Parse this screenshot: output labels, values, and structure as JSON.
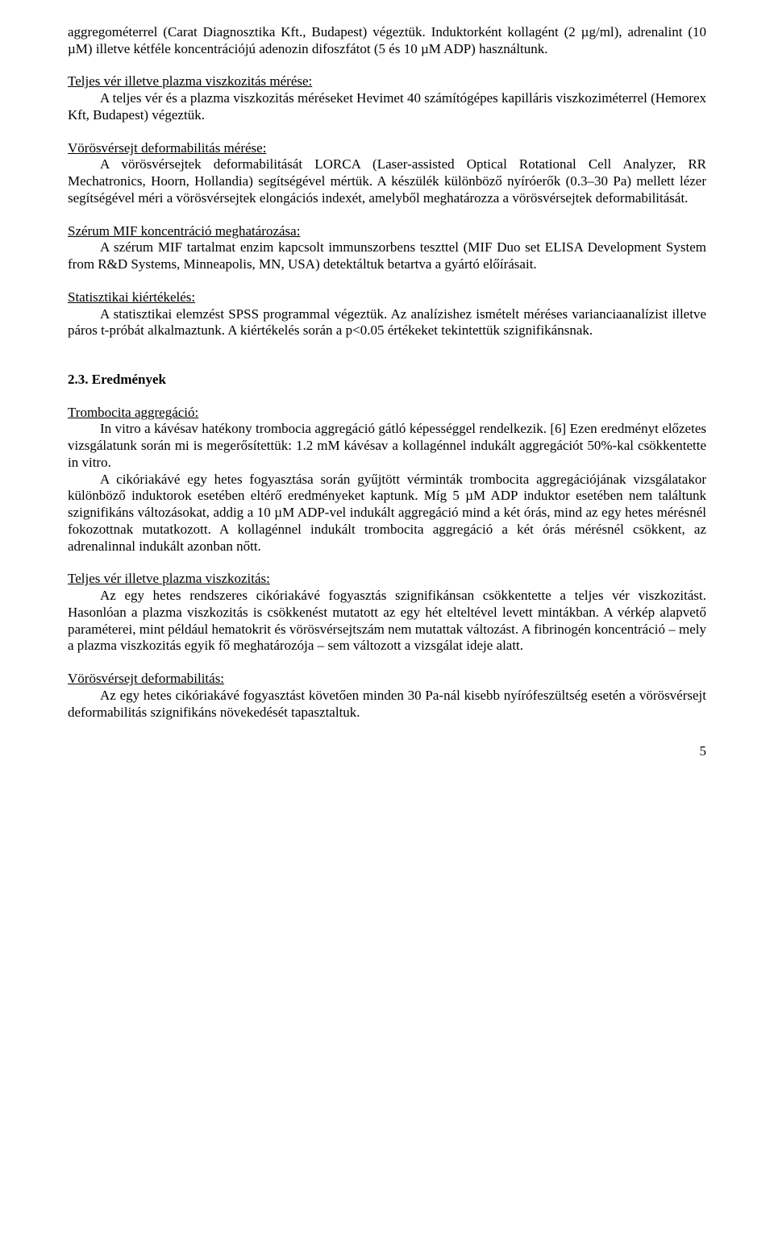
{
  "p1": "aggregométerrel (Carat Diagnosztika Kft., Budapest) végeztük. Induktorként kollagént (2 µg/ml), adrenalint (10 µM) illetve kétféle koncentrációjú adenozin difoszfátot (5 és 10 µM ADP) használtunk.",
  "p2_head": "Teljes vér illetve plazma viszkozitás mérése:",
  "p2_body": "A teljes vér és a plazma viszkozitás méréseket Hevimet 40 számítógépes kapilláris viszkoziméterrel (Hemorex Kft, Budapest) végeztük.",
  "p3_head": "Vörösvérsejt deformabilitás mérése:",
  "p3_body": "A vörösvérsejtek deformabilitását LORCA (Laser-assisted Optical Rotational Cell Analyzer, RR Mechatronics, Hoorn, Hollandia) segítségével mértük. A készülék különböző nyíróerők (0.3–30 Pa) mellett lézer segítségével méri a vörösvérsejtek elongációs indexét, amelyből meghatározza a vörösvérsejtek deformabilitását.",
  "p4_head": "Szérum MIF koncentráció meghatározása:",
  "p4_body": "A szérum MIF tartalmat enzim kapcsolt immunszorbens teszttel (MIF Duo set ELISA Development System from R&D Systems, Minneapolis, MN, USA) detektáltuk betartva a gyártó előírásait.",
  "p5_head": "Statisztikai kiértékelés:",
  "p5_body": "A statisztikai elemzést SPSS programmal végeztük. Az analízishez ismételt méréses varianciaanalízist illetve páros t-próbát alkalmaztunk. A kiértékelés során a p<0.05 értékeket tekintettük szignifikánsnak.",
  "section_heading": "2.3. Eredmények",
  "p6_head": "Trombocita aggregáció:",
  "p6_body1": "In vitro a kávésav hatékony trombocia aggregáció gátló képességgel rendelkezik. [6] Ezen eredményt előzetes vizsgálatunk során mi is megerősítettük: 1.2 mM kávésav a kollagénnel indukált aggregációt 50%-kal csökkentette in vitro.",
  "p6_body2": "A cikóriakávé egy hetes fogyasztása során gyűjtött vérminták trombocita aggregációjának vizsgálatakor különböző induktorok esetében eltérő eredményeket kaptunk. Míg 5 µM ADP induktor esetében nem találtunk szignifikáns változásokat, addig a 10 µM ADP-vel indukált aggregáció mind a két órás, mind az egy hetes mérésnél fokozottnak mutatkozott. A kollagénnel indukált trombocita aggregáció a két órás mérésnél csökkent, az adrenalinnal indukált azonban nőtt.",
  "p7_head": "Teljes vér illetve plazma viszkozitás:",
  "p7_body": "Az egy hetes rendszeres cikóriakávé fogyasztás szignifikánsan csökkentette a teljes vér viszkozitást. Hasonlóan a plazma viszkozitás is csökkenést mutatott az egy hét elteltével levett mintákban. A vérkép alapvető paraméterei, mint például hematokrit és vörösvérsejtszám nem mutattak változást. A fibrinogén koncentráció – mely a plazma viszkozitás egyik fő meghatározója – sem változott a vizsgálat ideje alatt.",
  "p8_head": "Vörösvérsejt deformabilitás:",
  "p8_body": "Az egy hetes cikóriakávé fogyasztást követően minden 30 Pa-nál kisebb nyírófeszültség esetén a vörösvérsejt deformabilitás szignifikáns növekedését tapasztaltuk.",
  "page_number": "5"
}
